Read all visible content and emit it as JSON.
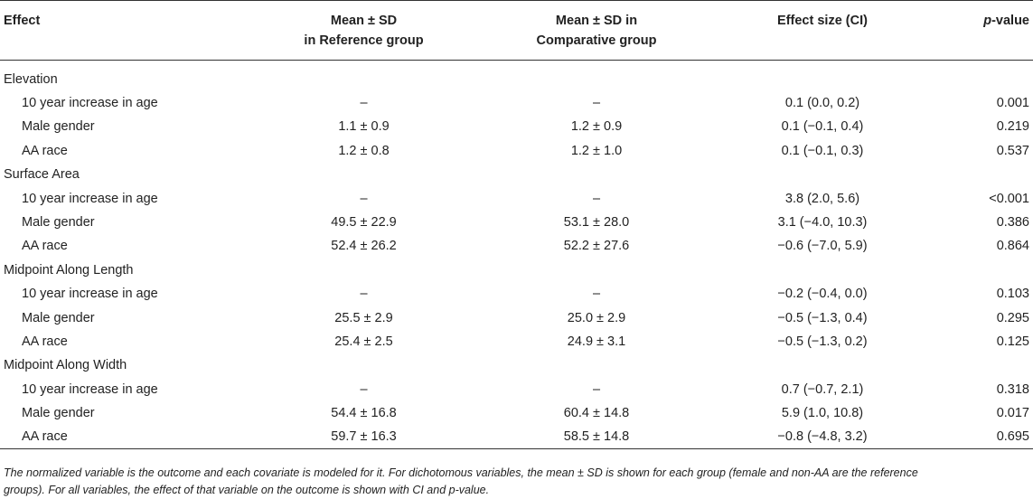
{
  "table": {
    "headers": {
      "effect": "Effect",
      "ref_line1": "Mean ± SD",
      "ref_line2": "in Reference group",
      "comp_line1": "Mean ± SD in",
      "comp_line2": "Comparative group",
      "effect_size": "Effect size (CI)",
      "p_italic": "p",
      "p_rest": "-value"
    },
    "sections": [
      {
        "title": "Elevation",
        "rows": [
          {
            "label": "10 year increase in age",
            "ref": "–",
            "comp": "–",
            "es": "0.1 (0.0, 0.2)",
            "p": "0.001"
          },
          {
            "label": "Male gender",
            "ref": "1.1 ± 0.9",
            "comp": "1.2 ± 0.9",
            "es": "0.1 (−0.1, 0.4)",
            "p": "0.219"
          },
          {
            "label": "AA race",
            "ref": "1.2 ± 0.8",
            "comp": "1.2 ± 1.0",
            "es": "0.1 (−0.1, 0.3)",
            "p": "0.537"
          }
        ]
      },
      {
        "title": "Surface Area",
        "rows": [
          {
            "label": "10 year increase in age",
            "ref": "–",
            "comp": "–",
            "es": "3.8 (2.0, 5.6)",
            "p": "<0.001"
          },
          {
            "label": "Male gender",
            "ref": "49.5 ± 22.9",
            "comp": "53.1 ± 28.0",
            "es": "3.1 (−4.0, 10.3)",
            "p": "0.386"
          },
          {
            "label": "AA race",
            "ref": "52.4 ± 26.2",
            "comp": "52.2 ± 27.6",
            "es": "−0.6 (−7.0, 5.9)",
            "p": "0.864"
          }
        ]
      },
      {
        "title": "Midpoint Along Length",
        "rows": [
          {
            "label": "10 year increase in age",
            "ref": "–",
            "comp": "–",
            "es": "−0.2 (−0.4, 0.0)",
            "p": "0.103"
          },
          {
            "label": "Male gender",
            "ref": "25.5 ± 2.9",
            "comp": "25.0 ± 2.9",
            "es": "−0.5 (−1.3, 0.4)",
            "p": "0.295"
          },
          {
            "label": "AA race",
            "ref": "25.4 ± 2.5",
            "comp": "24.9 ± 3.1",
            "es": "−0.5 (−1.3, 0.2)",
            "p": "0.125"
          }
        ]
      },
      {
        "title": "Midpoint Along Width",
        "rows": [
          {
            "label": "10 year increase in age",
            "ref": "–",
            "comp": "–",
            "es": "0.7 (−0.7, 2.1)",
            "p": "0.318"
          },
          {
            "label": "Male gender",
            "ref": "54.4 ± 16.8",
            "comp": "60.4 ± 14.8",
            "es": "5.9 (1.0, 10.8)",
            "p": "0.017"
          },
          {
            "label": "AA race",
            "ref": "59.7 ± 16.3",
            "comp": "58.5 ± 14.8",
            "es": "−0.8 (−4.8, 3.2)",
            "p": "0.695"
          }
        ]
      }
    ]
  },
  "footnote": {
    "line1": "The normalized variable is the outcome and each covariate is modeled for it. For dichotomous variables, the mean ± SD is shown for each group (female and non-AA are the reference",
    "line2": "groups). For all variables, the effect of that variable on the outcome is shown with CI and p-value."
  }
}
